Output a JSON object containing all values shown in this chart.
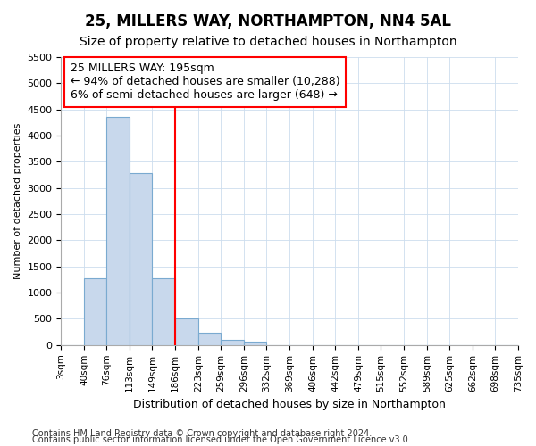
{
  "title1": "25, MILLERS WAY, NORTHAMPTON, NN4 5AL",
  "title2": "Size of property relative to detached houses in Northampton",
  "xlabel": "Distribution of detached houses by size in Northampton",
  "ylabel": "Number of detached properties",
  "annotation_title": "25 MILLERS WAY: 195sqm",
  "annotation_line1": "← 94% of detached houses are smaller (10,288)",
  "annotation_line2": "6% of semi-detached houses are larger (648) →",
  "footnote1": "Contains HM Land Registry data © Crown copyright and database right 2024.",
  "footnote2": "Contains public sector information licensed under the Open Government Licence v3.0.",
  "bar_edges": [
    3,
    40,
    76,
    113,
    149,
    186,
    223,
    259,
    296,
    332,
    369,
    406,
    442,
    479,
    515,
    552,
    589,
    625,
    662,
    698,
    735
  ],
  "bar_heights": [
    0,
    1270,
    4350,
    3280,
    1270,
    500,
    240,
    100,
    60,
    0,
    0,
    0,
    0,
    0,
    0,
    0,
    0,
    0,
    0,
    0
  ],
  "bar_color": "#c8d8ec",
  "bar_edgecolor": "#7aaad0",
  "vline_x": 186,
  "vline_color": "red",
  "ylim": [
    0,
    5500
  ],
  "yticks": [
    0,
    500,
    1000,
    1500,
    2000,
    2500,
    3000,
    3500,
    4000,
    4500,
    5000,
    5500
  ],
  "bg_color": "#ffffff",
  "plot_bg_color": "#ffffff",
  "grid_color": "#ccddee",
  "title1_fontsize": 12,
  "title2_fontsize": 10,
  "xlabel_fontsize": 9,
  "ylabel_fontsize": 8,
  "footnote_fontsize": 7,
  "annotation_fontsize": 9
}
